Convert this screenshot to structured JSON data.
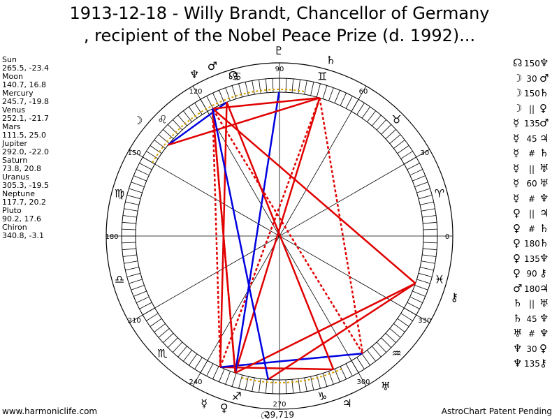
{
  "title_line1": "1913-12-18 - Willy Brandt, Chancellor of Germany",
  "title_line2": ", recipient of the Nobel Peace Prize (d. 1992)...",
  "planets": [
    {
      "name": "Sun",
      "coords": "265.5, -23.4"
    },
    {
      "name": "Moon",
      "coords": "140.7, 16.8"
    },
    {
      "name": "Mercury",
      "coords": "245.7, -19.8"
    },
    {
      "name": "Venus",
      "coords": "252.1, -21.7"
    },
    {
      "name": "Mars",
      "coords": "111.5, 25.0"
    },
    {
      "name": "Jupiter",
      "coords": "292.0, -22.0"
    },
    {
      "name": "Saturn",
      "coords": "73.8, 20.8"
    },
    {
      "name": "Uranus",
      "coords": "305.3, -19.5"
    },
    {
      "name": "Neptune",
      "coords": "117.7, 20.2"
    },
    {
      "name": "Pluto",
      "coords": "90.2, 17.6"
    },
    {
      "name": "Chiron",
      "coords": "340.8, -3.1"
    }
  ],
  "aspects": [
    {
      "p1": "☊",
      "aspect": "150",
      "p2": "♆"
    },
    {
      "p1": "☽",
      "aspect": "30",
      "p2": "♂"
    },
    {
      "p1": "☽",
      "aspect": "150",
      "p2": "♄"
    },
    {
      "p1": "☽",
      "aspect": "||",
      "p2": "♀"
    },
    {
      "p1": "☿",
      "aspect": "135",
      "p2": "♂"
    },
    {
      "p1": "☿",
      "aspect": "45",
      "p2": "♃"
    },
    {
      "p1": "☿",
      "aspect": "#",
      "p2": "♄"
    },
    {
      "p1": "☿",
      "aspect": "||",
      "p2": "♅"
    },
    {
      "p1": "☿",
      "aspect": "60",
      "p2": "♅"
    },
    {
      "p1": "☿",
      "aspect": "#",
      "p2": "♆"
    },
    {
      "p1": "♀",
      "aspect": "||",
      "p2": "♃"
    },
    {
      "p1": "♀",
      "aspect": "#",
      "p2": "♄"
    },
    {
      "p1": "♀",
      "aspect": "180",
      "p2": "♄"
    },
    {
      "p1": "♀",
      "aspect": "135",
      "p2": "♆"
    },
    {
      "p1": "♀",
      "aspect": "90",
      "p2": "⚷"
    },
    {
      "p1": "♂",
      "aspect": "180",
      "p2": "♃"
    },
    {
      "p1": "♄",
      "aspect": "||",
      "p2": "♅"
    },
    {
      "p1": "♄",
      "aspect": "45",
      "p2": "♆"
    },
    {
      "p1": "♅",
      "aspect": "#",
      "p2": "♆"
    },
    {
      "p1": "♆",
      "aspect": "30",
      "p2": "♀"
    },
    {
      "p1": "♆",
      "aspect": "135",
      "p2": "⚷"
    }
  ],
  "footer_left": "www.harmoniclife.com",
  "footer_right": "AstroChart Patent Pending",
  "bottom_value": "29,719",
  "degree_labels": [
    "0",
    "30",
    "60",
    "90",
    "120",
    "150",
    "180",
    "210",
    "240",
    "270",
    "300",
    "330"
  ],
  "chart_glyphs": {
    "sun": "☉",
    "moon": "☽",
    "mercury": "☿",
    "venus": "♀",
    "mars": "♂",
    "jupiter": "♃",
    "saturn": "♄",
    "uranus": "♅",
    "neptune": "♆",
    "pluto": "♇",
    "chiron": "⚷",
    "node": "☊"
  },
  "zodiac_glyphs": [
    "♈",
    "♉",
    "♊",
    "♋",
    "♌",
    "♍",
    "♎",
    "♏",
    "♐",
    "♑",
    "♒",
    "♓"
  ],
  "colors": {
    "hard_aspect": "#e00000",
    "soft_aspect": "#0000e0",
    "node_axis": "#d4a000",
    "ring": "#000000"
  }
}
